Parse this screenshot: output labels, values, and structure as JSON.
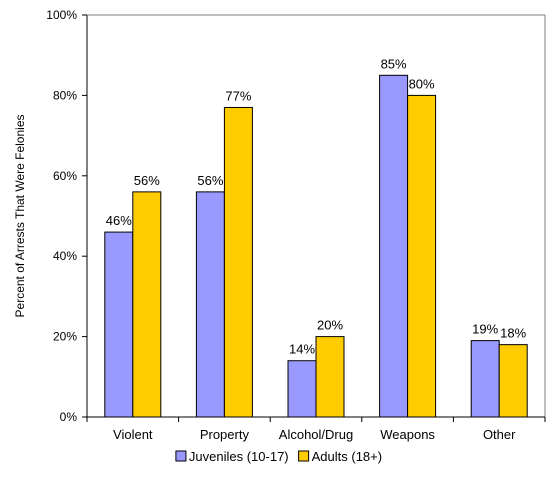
{
  "chart_data": {
    "type": "bar",
    "title": "",
    "xlabel": "",
    "ylabel": "Percent of Arrests That Were Felonies",
    "ylim": [
      0,
      100
    ],
    "yticks": [
      "0%",
      "20%",
      "40%",
      "60%",
      "80%",
      "100%"
    ],
    "ytick_values": [
      0,
      20,
      40,
      60,
      80,
      100
    ],
    "grid": false,
    "legend_position": "bottom",
    "categories": [
      "Violent",
      "Property",
      "Alcohol/Drug",
      "Weapons",
      "Other"
    ],
    "series": [
      {
        "name": "Juveniles (10-17)",
        "color": "#9999ff",
        "values": [
          46,
          56,
          14,
          85,
          19
        ],
        "labels": [
          "46%",
          "56%",
          "14%",
          "85%",
          "19%"
        ]
      },
      {
        "name": "Adults (18+)",
        "color": "#ffcc00",
        "values": [
          56,
          77,
          20,
          80,
          18
        ],
        "labels": [
          "56%",
          "77%",
          "20%",
          "80%",
          "18%"
        ]
      }
    ]
  }
}
